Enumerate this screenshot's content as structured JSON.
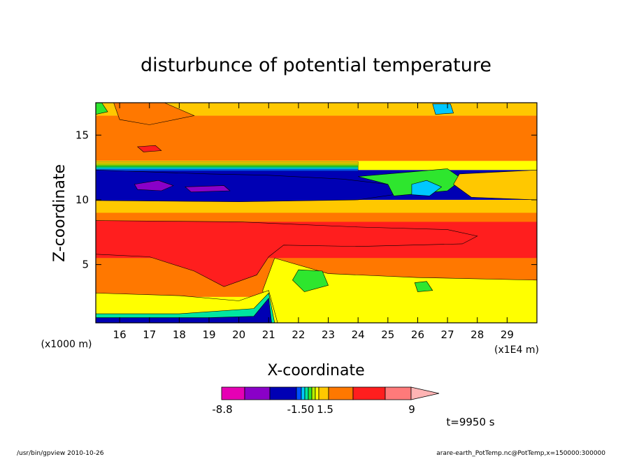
{
  "chart_data": {
    "type": "heatmap",
    "title": "disturbunce of potential temperature",
    "xlabel": "X-coordinate",
    "ylabel": "Z-coordinate",
    "x_unit": "(x1E4 m)",
    "y_unit": "(x1000 m)",
    "xlim": [
      15.2,
      30
    ],
    "ylim": [
      0.5,
      17.5
    ],
    "x_ticks": [
      "16",
      "17",
      "18",
      "19",
      "20",
      "21",
      "22",
      "23",
      "24",
      "25",
      "26",
      "27",
      "28",
      "29"
    ],
    "x_tick_values": [
      16,
      17,
      18,
      19,
      20,
      21,
      22,
      23,
      24,
      25,
      26,
      27,
      28,
      29
    ],
    "y_ticks": [
      "5",
      "10",
      "15"
    ],
    "y_tick_values": [
      5,
      10,
      15
    ],
    "grid": false,
    "time_label": "t=9950 s",
    "colorbar": {
      "labels": [
        "-8.8",
        "-1.50",
        "1.5",
        "9"
      ],
      "label_values": [
        -8.8,
        -1.5,
        1.5,
        9
      ],
      "colors": [
        "#e600b4",
        "#8a00c8",
        "#0000b4",
        "#0050ff",
        "#00c8ff",
        "#00e6a0",
        "#2ee62e",
        "#b4f000",
        "#ffff00",
        "#ffc800",
        "#ff7800",
        "#ff1e1e",
        "#ff7a7a",
        "#ffb4b4"
      ]
    },
    "bands": [
      {
        "z_range": [
          16.5,
          17.5
        ],
        "level": "yellow",
        "color": "#ffc800"
      },
      {
        "z_range": [
          13.0,
          16.5
        ],
        "level": "orange",
        "color": "#ff7800"
      },
      {
        "z_range": [
          12.3,
          13.0
        ],
        "level": "yellow to cyan gradient",
        "color": "#ffff00"
      },
      {
        "z_range": [
          10.0,
          12.3
        ],
        "level": "blue minimum",
        "color": "#0000b4"
      },
      {
        "z_range": [
          9.0,
          10.0
        ],
        "level": "yellow",
        "color": "#ffc800"
      },
      {
        "z_range": [
          5.5,
          9.0
        ],
        "level": "orange",
        "color": "#ff7800"
      },
      {
        "z_range": [
          5.5,
          8.3
        ],
        "level": "red maximum",
        "color": "#ff1e1e"
      },
      {
        "z_range": [
          2.5,
          5.5
        ],
        "level": "orange",
        "color": "#ff7800"
      },
      {
        "z_range": [
          0.5,
          2.5
        ],
        "level": "yellow, blue near surface",
        "color": "#ffff00"
      }
    ]
  },
  "footer": {
    "left": "/usr/bin/gpview   2010-10-26",
    "right": "arare-earth_PotTemp.nc@PotTemp,x=150000:300000"
  }
}
